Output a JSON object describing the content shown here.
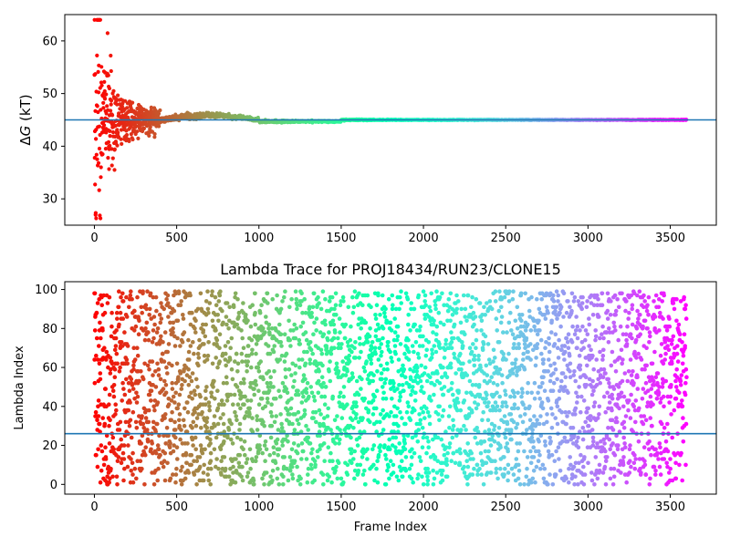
{
  "chart_data": [
    {
      "type": "scatter",
      "title": "",
      "xlabel": "",
      "ylabel_prefix": "Δ",
      "ylabel_var": "G",
      "ylabel_suffix": " (kT)",
      "xlim": [
        -180,
        3780
      ],
      "ylim": [
        25,
        65
      ],
      "xticks": [
        0,
        500,
        1000,
        1500,
        2000,
        2500,
        3000,
        3500
      ],
      "yticks": [
        30,
        40,
        50,
        60
      ],
      "hline": 45.0,
      "hline_color": "#1f77b4",
      "colormap": "rainbow_reversed",
      "n_frames": 3600,
      "grid": false,
      "description_series": {
        "converged_value": 45.0,
        "early_spread": [
          26.3,
          64.0
        ]
      }
    },
    {
      "type": "scatter",
      "title": "Lambda Trace for PROJ18434/RUN23/CLONE15",
      "xlabel": "Frame Index",
      "ylabel": "Lambda Index",
      "xlim": [
        -180,
        3780
      ],
      "ylim": [
        -5,
        104
      ],
      "xticks": [
        0,
        500,
        1000,
        1500,
        2000,
        2500,
        3000,
        3500
      ],
      "yticks": [
        0,
        20,
        40,
        60,
        80,
        100
      ],
      "hline": 26,
      "hline_color": "#1f77b4",
      "colormap": "rainbow_reversed",
      "n_frames": 3600,
      "grid": false,
      "lambda_range": [
        0,
        99
      ]
    }
  ]
}
